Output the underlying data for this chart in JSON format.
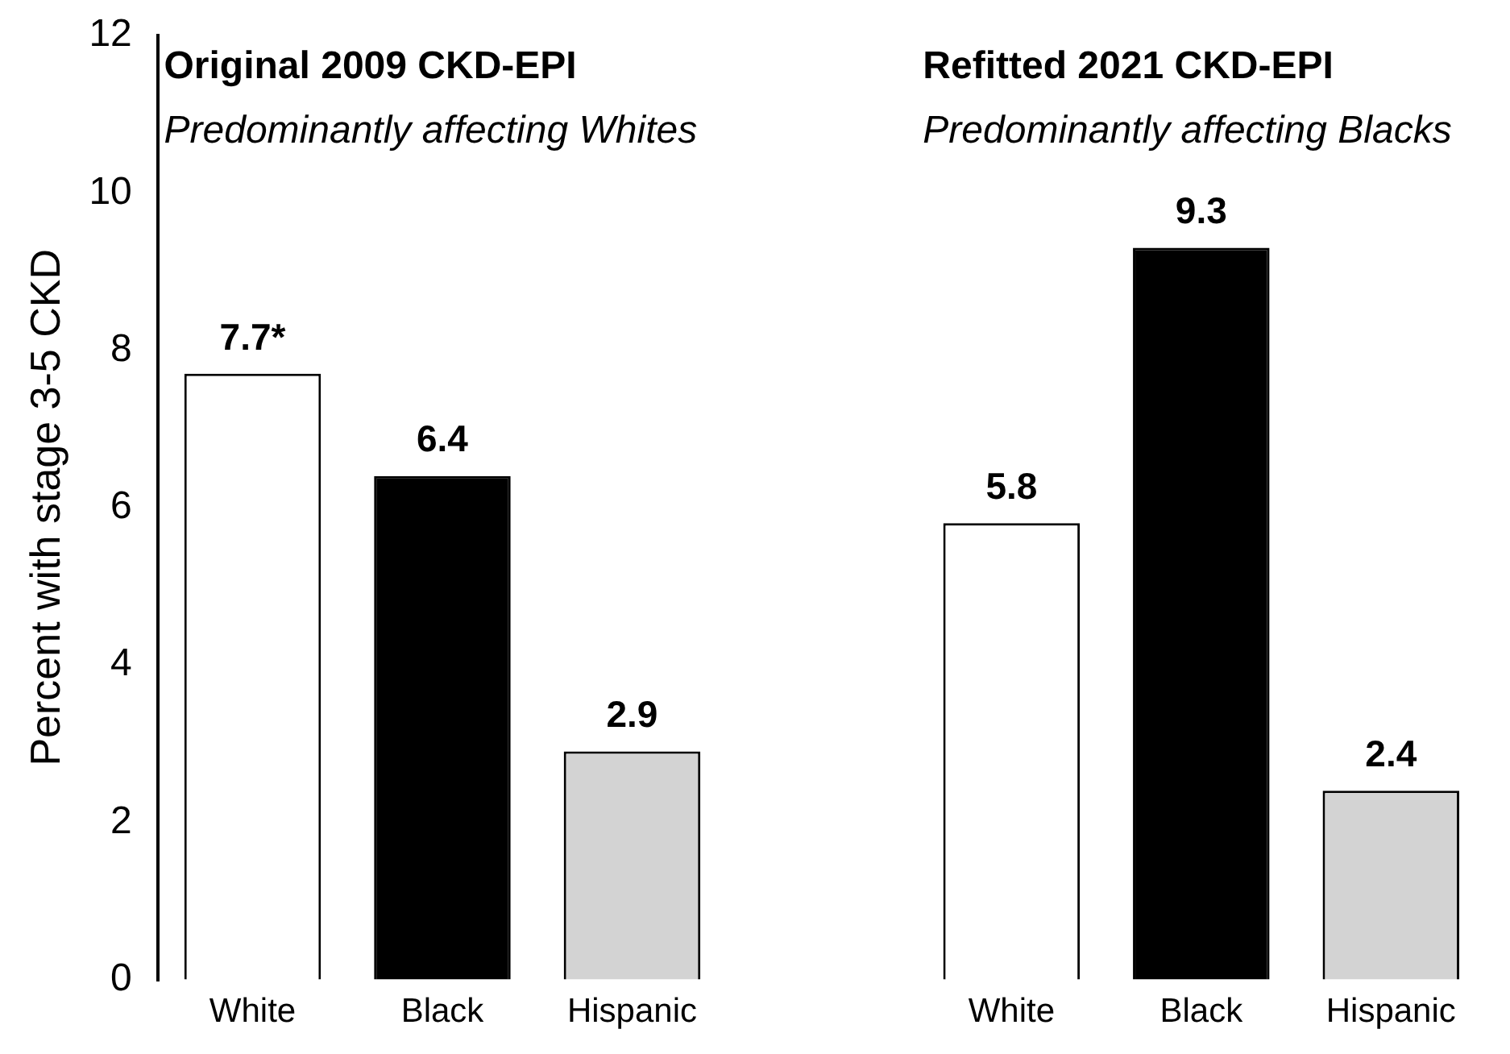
{
  "chart_data": {
    "type": "bar",
    "ylabel": "Percent with stage 3-5 CKD",
    "categories": [
      "White",
      "Black",
      "Hispanic",
      null,
      "White",
      "Black",
      "Hispanic"
    ],
    "values": [
      7.7,
      6.4,
      2.9,
      null,
      5.8,
      9.3,
      2.4
    ],
    "colors": [
      "#ffffff",
      "#000000",
      "#d3d3d3",
      null,
      "#ffffff",
      "#000000",
      "#d3d3d3"
    ],
    "value_labels": [
      "7.7*",
      "6.4",
      "2.9",
      null,
      "5.8",
      "9.3",
      "2.4"
    ],
    "annotations": [
      "Original 2009 CKD-EPI",
      "Predominantly affecting Whites",
      "Refitted 2021 CKD-EPI",
      "Predominantly affecting Blacks"
    ],
    "ylim": [
      0,
      12
    ],
    "yticks": [
      0,
      2,
      4,
      6,
      8,
      10,
      12
    ],
    "grid": false,
    "legend": false
  }
}
